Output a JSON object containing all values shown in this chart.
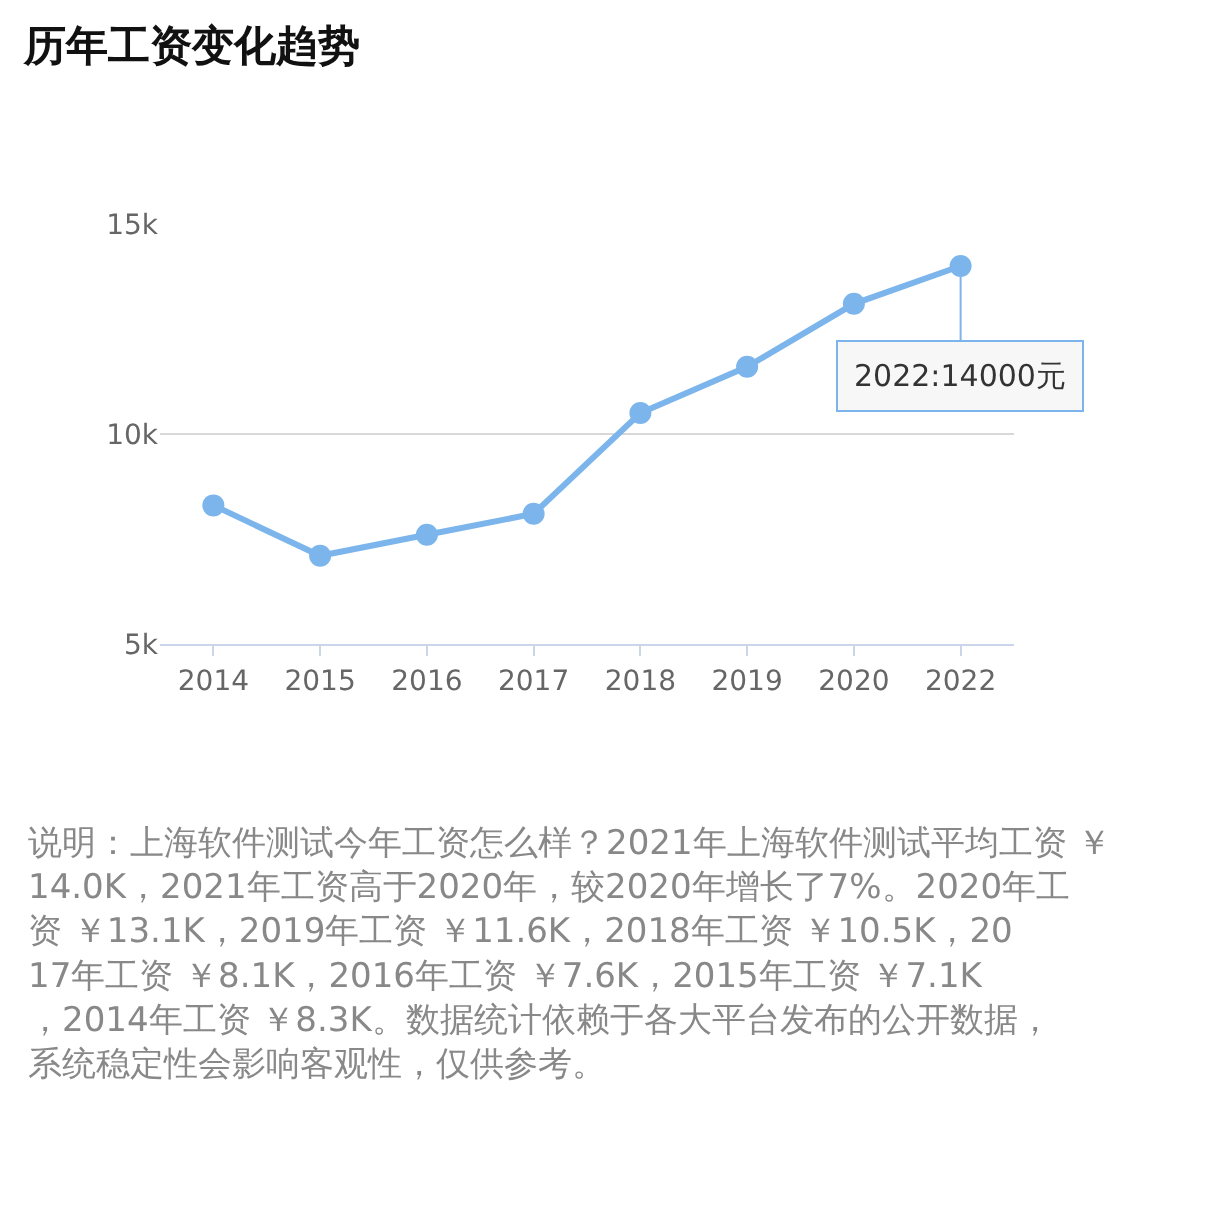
{
  "chart_data": {
    "type": "line",
    "title": "历年工资变化趋势",
    "categories": [
      "2014",
      "2015",
      "2016",
      "2017",
      "2018",
      "2019",
      "2020",
      "2022"
    ],
    "series": [
      {
        "color": "#7cb5ec",
        "values": [
          8300,
          7100,
          7600,
          8100,
          10500,
          11600,
          13100,
          14000
        ]
      }
    ],
    "ylim": [
      5000,
      15000
    ],
    "yticks": [
      {
        "value": 5000,
        "label": "5k"
      },
      {
        "value": 10000,
        "label": "10k"
      },
      {
        "value": 15000,
        "label": "15k"
      }
    ],
    "grid": "y",
    "legend": false,
    "marker": "circle",
    "line_style": "solid",
    "annotations": [
      {
        "text": "2022:14000元",
        "x": "2022",
        "y": 14000
      },
      "说明：上海软件测试今年工资怎么样？2021年上海软件测试平均工资 ￥14.0K，2021年工资高于2020年，较2020年增长了7%。2020年工资 ￥13.1K，2019年工资 ￥11.6K，2018年工资 ￥10.5K，2017年工资 ￥8.1K，2016年工资 ￥7.6K，2015年工资 ￥7.1K，2014年工资 ￥8.3K。数据统计依赖于各大平台发布的公开数据，系统稳定性会影响客观性，仅供参考。"
    ]
  }
}
